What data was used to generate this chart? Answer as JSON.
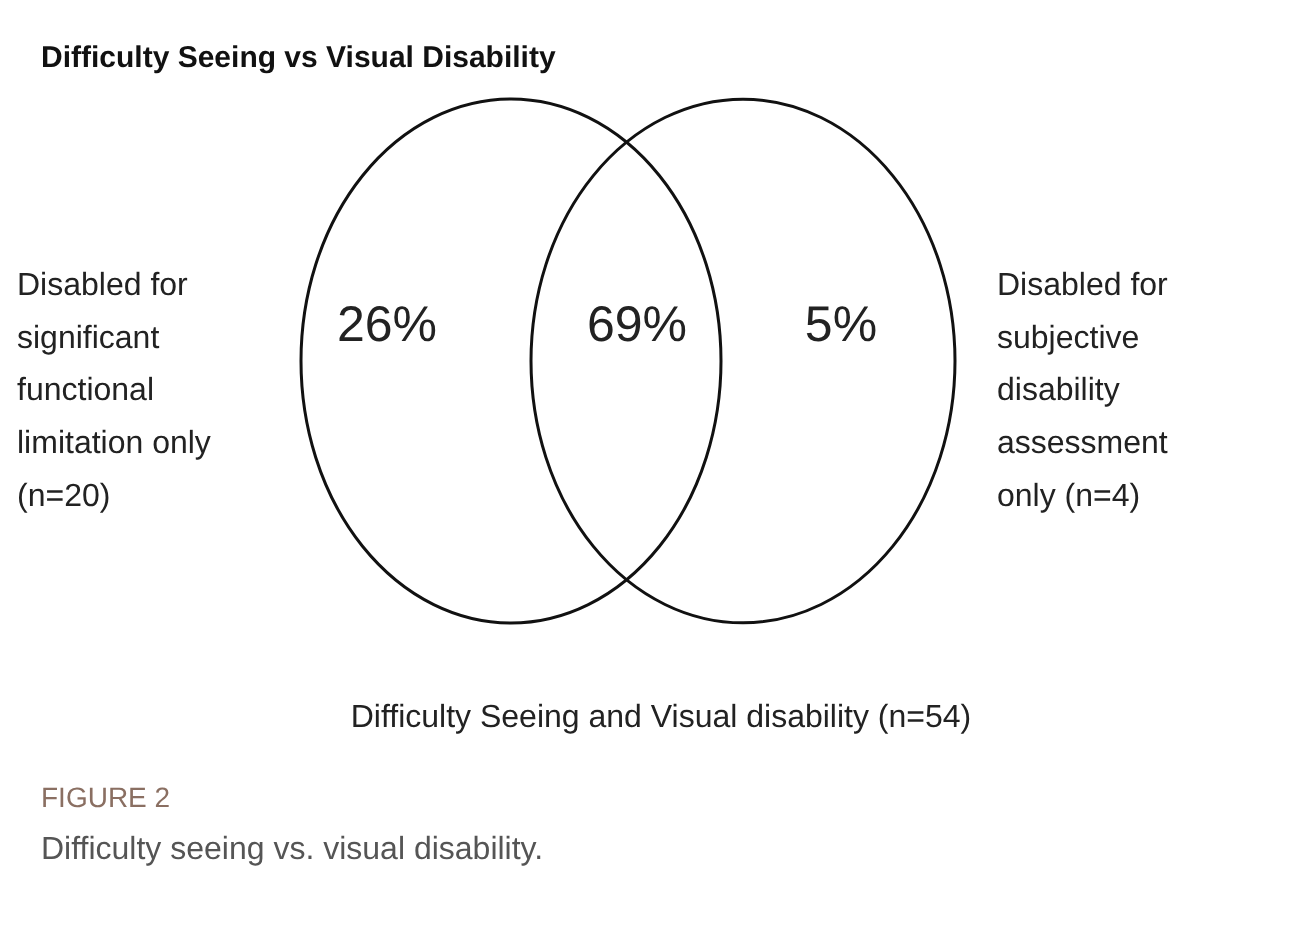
{
  "chart_data": {
    "type": "other",
    "title": "Difficulty Seeing vs Visual Disability",
    "categories": [
      "Disabled for significant functional limitation only (n=20)",
      "Difficulty Seeing and Visual disability (n=54)",
      "Disabled for subjective disability assessment only (n=4)"
    ],
    "values": [
      26,
      69,
      5
    ],
    "value_labels": [
      "26%",
      "69%",
      "5%"
    ],
    "annotations": [
      "FIGURE 2",
      "Difficulty seeing vs. visual disability."
    ]
  }
}
